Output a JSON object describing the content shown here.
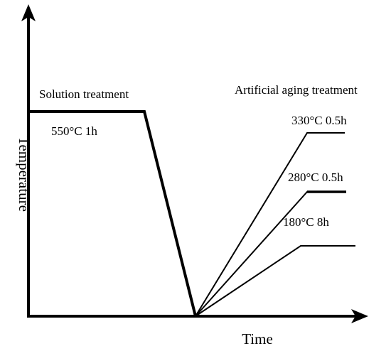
{
  "axes": {
    "y_label": "Temperature",
    "x_label": "Time"
  },
  "solution": {
    "title": "Solution treatment",
    "condition": "550°C 1h"
  },
  "aging": {
    "title": "Artificial aging treatment",
    "conditions": [
      "330°C 0.5h",
      "280°C 0.5h",
      "180°C 8h"
    ]
  }
}
